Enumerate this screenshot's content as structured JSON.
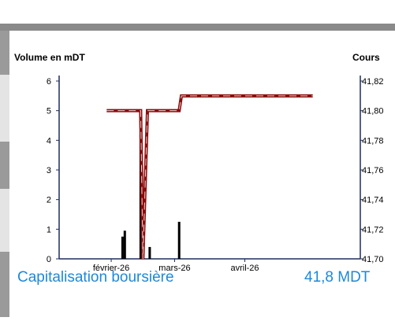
{
  "chart_data": {
    "type": "combo",
    "ylabel": "Volume en mDT",
    "y2label": "Cours",
    "xlim": [
      9,
      142
    ],
    "xticks": [
      {
        "value": 32,
        "label": "février-26"
      },
      {
        "value": 60,
        "label": "mars-26"
      },
      {
        "value": 91,
        "label": "avril-26"
      }
    ],
    "ylim": [
      0,
      6
    ],
    "yticks": [
      0,
      1,
      2,
      3,
      4,
      5,
      6
    ],
    "y2lim": [
      41.7,
      41.82
    ],
    "y2ticks": [
      {
        "value": 41.7,
        "label": "41,70"
      },
      {
        "value": 41.72,
        "label": "41,72"
      },
      {
        "value": 41.74,
        "label": "41,74"
      },
      {
        "value": 41.76,
        "label": "41,76"
      },
      {
        "value": 41.78,
        "label": "41,78"
      },
      {
        "value": 41.8,
        "label": "41,80"
      },
      {
        "value": 41.82,
        "label": "41,82"
      }
    ],
    "series": [
      {
        "kind": "bar",
        "color": "#000000",
        "x": [
          37,
          38,
          45,
          49,
          62
        ],
        "values": [
          0.75,
          0.95,
          4.2,
          0.4,
          1.25
        ]
      },
      {
        "kind": "line",
        "axis": "y2",
        "color": "#8b0a0a",
        "x": [
          30,
          45,
          46,
          48,
          62,
          63,
          121
        ],
        "values": [
          41.8,
          41.8,
          41.7,
          41.8,
          41.8,
          41.81,
          41.81
        ]
      }
    ]
  },
  "info": [
    {
      "label": "Capitalisation boursière",
      "value": "41,8 MDT"
    }
  ]
}
